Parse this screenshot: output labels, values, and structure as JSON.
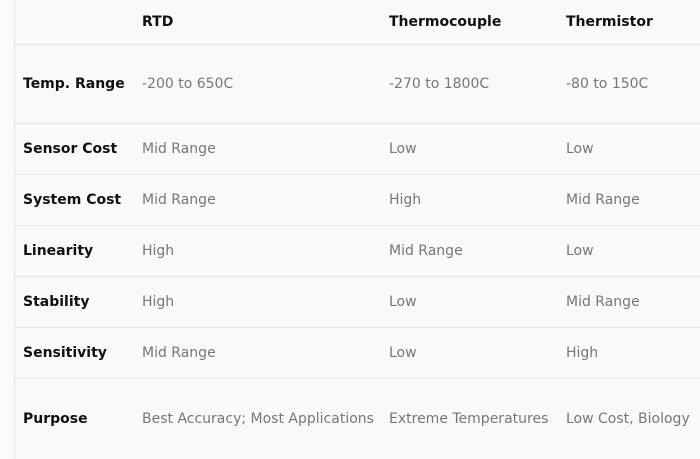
{
  "headers": [
    "",
    "RTD",
    "Thermocouple",
    "Thermistor"
  ],
  "rows": [
    [
      "Temp. Range",
      "-200 to 650C",
      "-270 to 1800C",
      "-80 to 150C"
    ],
    [
      "Sensor Cost",
      "Mid Range",
      "Low",
      "Low"
    ],
    [
      "System Cost",
      "Mid Range",
      "High",
      "Mid Range"
    ],
    [
      "Linearity",
      "High",
      "Mid Range",
      "Low"
    ],
    [
      "Stability",
      "High",
      "Low",
      "Mid Range"
    ],
    [
      "Sensitivity",
      "Mid Range",
      "Low",
      "High"
    ],
    [
      "Purpose",
      "Best Accuracy; Most Applications",
      "Extreme Temperatures",
      "Low Cost, Biology"
    ]
  ]
}
